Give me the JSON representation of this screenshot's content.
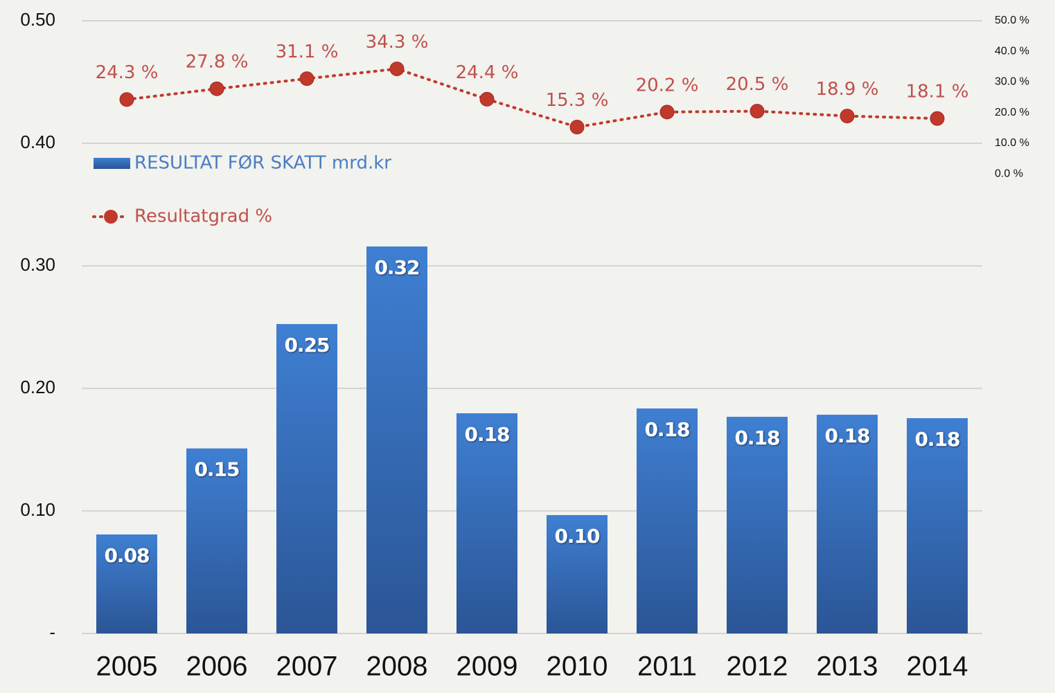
{
  "chart_data": {
    "type": "bar+line",
    "categories": [
      "2005",
      "2006",
      "2007",
      "2008",
      "2009",
      "2010",
      "2011",
      "2012",
      "2013",
      "2014"
    ],
    "series": [
      {
        "name": "RESULTAT FØR SKATT mrd.kr",
        "type": "bar",
        "color": "#3a72c4",
        "values": [
          0.0808,
          0.151,
          0.2525,
          0.3158,
          0.1797,
          0.0966,
          0.1836,
          0.1768,
          0.1785,
          0.1757
        ],
        "value_labels": [
          "0.08",
          "0.15",
          "0.25",
          "0.32",
          "0.18",
          "0.10",
          "0.18",
          "0.18",
          "0.18",
          "0.18"
        ]
      },
      {
        "name": "Resultatgrad %",
        "type": "line",
        "axis": "y2",
        "color": "#c0392b",
        "values": [
          24.3,
          27.8,
          31.1,
          34.3,
          24.4,
          15.3,
          20.2,
          20.5,
          18.9,
          18.1
        ],
        "value_labels": [
          "24.3 %",
          "27.8 %",
          "31.1 %",
          "34.3 %",
          "24.4 %",
          "15.3 %",
          "20.2 %",
          "20.5 %",
          "18.9 %",
          "18.1 %"
        ]
      }
    ],
    "ylim": [
      0,
      0.5
    ],
    "yticks": [
      {
        "value": 0,
        "label": "-"
      },
      {
        "value": 0.1,
        "label": "0.10"
      },
      {
        "value": 0.2,
        "label": "0.20"
      },
      {
        "value": 0.3,
        "label": "0.30"
      },
      {
        "value": 0.4,
        "label": "0.40"
      },
      {
        "value": 0.5,
        "label": "0.50"
      }
    ],
    "y2lim": [
      -150,
      50
    ],
    "y2ticks": [
      {
        "value": 0,
        "label": "0.0 %"
      },
      {
        "value": 10,
        "label": "10.0 %"
      },
      {
        "value": 20,
        "label": "20.0 %"
      },
      {
        "value": 30,
        "label": "30.0 %"
      },
      {
        "value": 40,
        "label": "40.0 %"
      },
      {
        "value": 50,
        "label": "50.0 %"
      }
    ],
    "grid": true,
    "legend": "top-left"
  }
}
